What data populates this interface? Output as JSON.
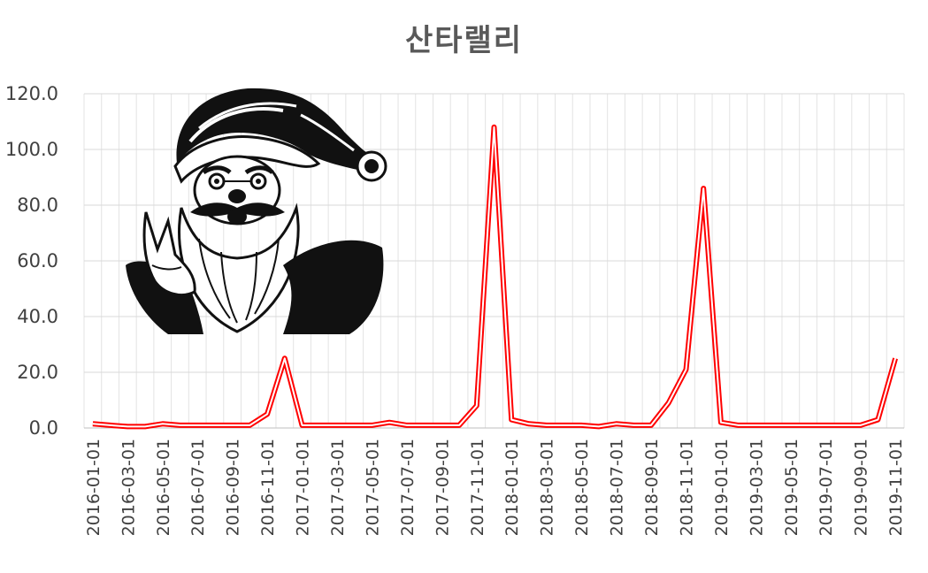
{
  "chart_data": {
    "type": "line",
    "title": "산타랠리",
    "xlabel": "",
    "ylabel": "",
    "ylim": [
      0,
      120
    ],
    "yticks": [
      "0.0",
      "20.0",
      "40.0",
      "60.0",
      "80.0",
      "100.0",
      "120.0"
    ],
    "grid": true,
    "legend": "none",
    "line_color": "#ff0000",
    "x_tick_labels": [
      "2016-01-01",
      "2016-03-01",
      "2016-05-01",
      "2016-07-01",
      "2016-09-01",
      "2016-11-01",
      "2017-01-01",
      "2017-03-01",
      "2017-05-01",
      "2017-07-01",
      "2017-09-01",
      "2017-11-01",
      "2018-01-01",
      "2018-03-01",
      "2018-05-01",
      "2018-07-01",
      "2018-09-01",
      "2018-11-01",
      "2019-01-01",
      "2019-03-01",
      "2019-05-01",
      "2019-07-01",
      "2019-09-01",
      "2019-11-01"
    ],
    "x": [
      "2016-01",
      "2016-02",
      "2016-03",
      "2016-04",
      "2016-05",
      "2016-06",
      "2016-07",
      "2016-08",
      "2016-09",
      "2016-10",
      "2016-11",
      "2016-12",
      "2017-01",
      "2017-02",
      "2017-03",
      "2017-04",
      "2017-05",
      "2017-06",
      "2017-07",
      "2017-08",
      "2017-09",
      "2017-10",
      "2017-11",
      "2017-12",
      "2018-01",
      "2018-02",
      "2018-03",
      "2018-04",
      "2018-05",
      "2018-06",
      "2018-07",
      "2018-08",
      "2018-09",
      "2018-10",
      "2018-11",
      "2018-12",
      "2019-01",
      "2019-02",
      "2019-03",
      "2019-04",
      "2019-05",
      "2019-06",
      "2019-07",
      "2019-08",
      "2019-09",
      "2019-10",
      "2019-11"
    ],
    "series": [
      {
        "values": [
          1.5,
          1.0,
          0.5,
          0.5,
          1.5,
          1.0,
          1.0,
          1.0,
          1.0,
          1.0,
          5.0,
          25.0,
          1.0,
          1.0,
          1.0,
          1.0,
          1.0,
          2.0,
          1.0,
          1.0,
          1.0,
          1.0,
          8.0,
          108.0,
          3.0,
          1.5,
          1.0,
          1.0,
          1.0,
          0.5,
          1.5,
          1.0,
          1.0,
          9.0,
          21.0,
          86.0,
          2.0,
          1.0,
          1.0,
          1.0,
          1.0,
          1.0,
          1.0,
          1.0,
          1.0,
          3.0,
          25.0
        ]
      }
    ]
  },
  "decoration": {
    "illustration": "santa-claus"
  }
}
